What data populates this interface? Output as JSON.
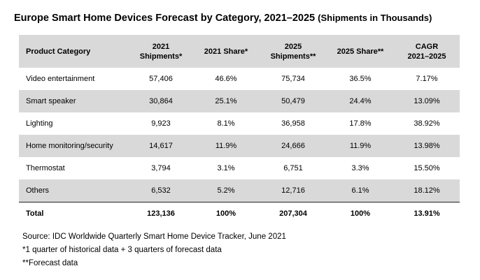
{
  "title": {
    "main": "Europe Smart Home Devices Forecast by Category, 2021–2025",
    "sub": "(Shipments in Thousands)"
  },
  "table": {
    "headers": [
      [
        "Product Category"
      ],
      [
        "2021",
        "Shipments*"
      ],
      [
        "2021 Share*"
      ],
      [
        "2025",
        "Shipments**"
      ],
      [
        "2025 Share**"
      ],
      [
        "CAGR",
        "2021–2025"
      ]
    ],
    "rows": [
      [
        "Video entertainment",
        "57,406",
        "46.6%",
        "75,734",
        "36.5%",
        "7.17%"
      ],
      [
        "Smart speaker",
        "30,864",
        "25.1%",
        "50,479",
        "24.4%",
        "13.09%"
      ],
      [
        "Lighting",
        "9,923",
        "8.1%",
        "36,958",
        "17.8%",
        "38.92%"
      ],
      [
        "Home monitoring/security",
        "14,617",
        "11.9%",
        "24,666",
        "11.9%",
        "13.98%"
      ],
      [
        "Thermostat",
        "3,794",
        "3.1%",
        "6,751",
        "3.3%",
        "15.50%"
      ],
      [
        "Others",
        "6,532",
        "5.2%",
        "12,716",
        "6.1%",
        "18.12%"
      ]
    ],
    "total": [
      "Total",
      "123,136",
      "100%",
      "207,304",
      "100%",
      "13.91%"
    ]
  },
  "notes": {
    "source": "Source: IDC Worldwide Quarterly Smart Home Device Tracker, June 2021",
    "footnote1": "*1 quarter of historical data + 3 quarters of forecast data",
    "footnote2": "**Forecast data"
  },
  "colors": {
    "shade": "#d9d9d9",
    "text": "#000000",
    "rule": "#222222"
  }
}
